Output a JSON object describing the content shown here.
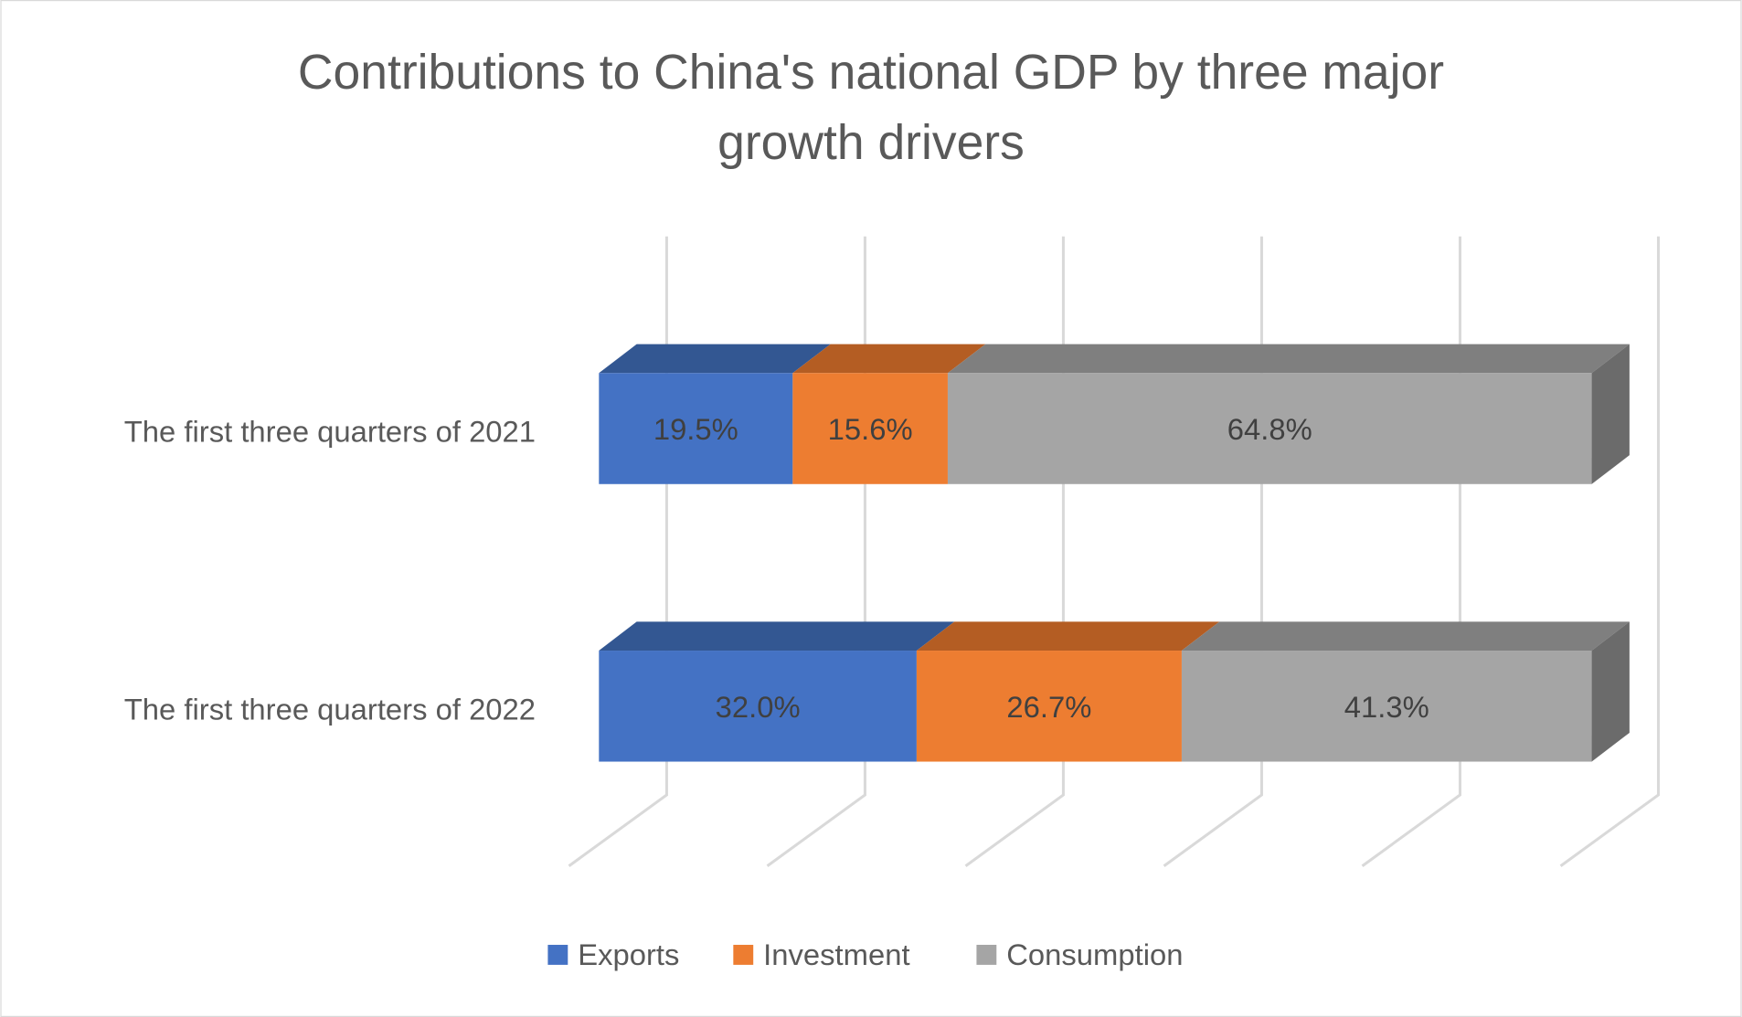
{
  "chart_data": {
    "type": "bar",
    "orientation": "horizontal",
    "stacked": "100%",
    "style": "3d",
    "title": "Contributions to China's national GDP by three major growth drivers",
    "title_lines": [
      "Contributions to China's national GDP by three major",
      "growth drivers"
    ],
    "categories": [
      "The first three quarters of 2021",
      "The first three quarters of 2022"
    ],
    "series": [
      {
        "name": "Exports",
        "values": [
          19.5,
          32.0
        ],
        "labels": [
          "19.5%",
          "32.0%"
        ],
        "color": "#4472C4",
        "top_color": "#335792"
      },
      {
        "name": "Investment",
        "values": [
          15.6,
          26.7
        ],
        "labels": [
          "15.6%",
          "26.7%"
        ],
        "color": "#ED7D31",
        "top_color": "#B45D23"
      },
      {
        "name": "Consumption",
        "values": [
          64.8,
          41.3
        ],
        "labels": [
          "64.8%",
          "41.3%"
        ],
        "color": "#A5A5A5",
        "top_color": "#7F7F7F",
        "side_color": "#6B6B6B"
      }
    ],
    "xlim": [
      0,
      100
    ],
    "grid": true,
    "legend": "bottom"
  }
}
